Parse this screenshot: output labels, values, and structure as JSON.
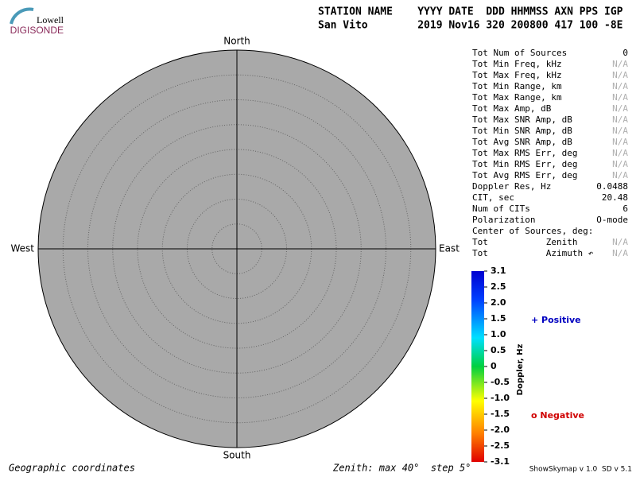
{
  "logo": {
    "top": "Lowell",
    "bottom": "DIGISONDE"
  },
  "header": {
    "labels": "STATION NAME    YYYY DATE  DDD HHMMSS AXN PPS IGP",
    "values": "San Vito        2019 Nov16 320 200800 417 100 -8E"
  },
  "compass": {
    "north": "North",
    "south": "South",
    "east": "East",
    "west": "West"
  },
  "stats": [
    {
      "label": "Tot Num of Sources",
      "value": "0"
    },
    {
      "label": "Tot Min Freq, kHz",
      "value": "N/A"
    },
    {
      "label": "Tot Max Freq, kHz",
      "value": "N/A"
    },
    {
      "label": "Tot Min Range, km",
      "value": "N/A"
    },
    {
      "label": "Tot Max Range, km",
      "value": "N/A"
    },
    {
      "label": "Tot Max Amp, dB",
      "value": "N/A"
    },
    {
      "label": "Tot Max SNR Amp, dB",
      "value": "N/A"
    },
    {
      "label": "Tot Min SNR Amp, dB",
      "value": "N/A"
    },
    {
      "label": "Tot Avg SNR Amp, dB",
      "value": "N/A"
    },
    {
      "label": "Tot Max RMS Err, deg",
      "value": "N/A"
    },
    {
      "label": "Tot Min RMS Err, deg",
      "value": "N/A"
    },
    {
      "label": "Tot Avg RMS Err, deg",
      "value": "N/A"
    },
    {
      "label": "Doppler Res, Hz",
      "value": "0.0488"
    },
    {
      "label": "CIT, sec",
      "value": "20.48"
    },
    {
      "label": "Num of CITs",
      "value": "6"
    },
    {
      "label": "Polarization",
      "value": "O-mode"
    },
    {
      "label": "Center of Sources, deg:"
    },
    {
      "label": "Tot           Zenith",
      "value": "N/A"
    },
    {
      "label": "Tot           Azimuth ↶",
      "value": "N/A"
    }
  ],
  "colorbar": {
    "title": "Doppler, Hz",
    "ticks": [
      "3.1",
      "2.5",
      "2.0",
      "1.5",
      "1.0",
      "0.5",
      "0",
      "-0.5",
      "-1.0",
      "-1.5",
      "-2.0",
      "-2.5",
      "-3.1"
    ]
  },
  "legend": {
    "positive": "+ Positive",
    "negative": "o Negative"
  },
  "footer": {
    "coordinates": "Geographic coordinates",
    "zenith": "Zenith: max 40°  step 5°",
    "version": "ShowSkymap v 1.0  SD v 5.1"
  }
}
